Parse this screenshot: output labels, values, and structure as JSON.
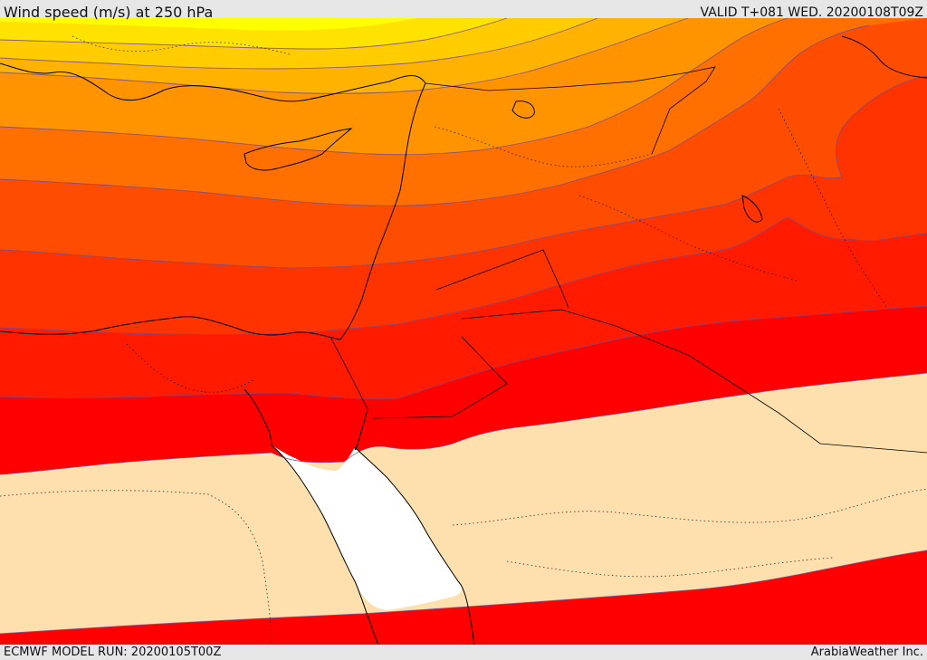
{
  "header": {
    "title": "Wind speed (m/s) at 250 hPa",
    "valid": "VALID T+081 WED. 20200108T09Z"
  },
  "footer": {
    "model_run": "ECMWF MODEL RUN: 20200105T00Z",
    "credit": "ArabiaWeather Inc."
  },
  "colors": {
    "calm": "#fde0ad",
    "band_1": "#ff0000",
    "band_2": "#ff1a00",
    "band_3": "#ff3300",
    "band_4": "#ff4d00",
    "band_5": "#ff7000",
    "band_6": "#ff9300",
    "band_7": "#ffb300",
    "band_8": "#ffcc00",
    "band_9": "#ffe300",
    "band_10": "#ffff00",
    "red_sea": "#ffffff",
    "contour": "#7a4a8a",
    "coastline": "#000000"
  }
}
